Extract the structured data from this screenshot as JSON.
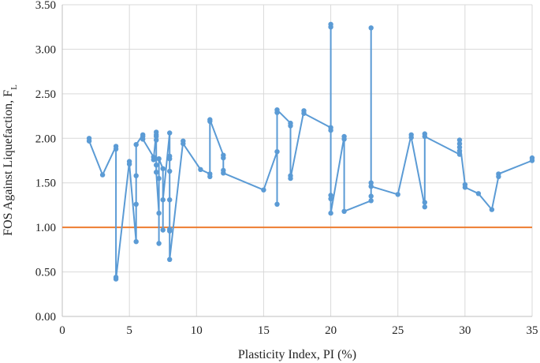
{
  "chart_data": {
    "type": "line",
    "xlabel": "Plasticity Index, PI (%)",
    "ylabel": "FOS Against Liquefaction, F",
    "ylabel_sub": "L",
    "xlim": [
      0,
      35
    ],
    "ylim": [
      0,
      3.5
    ],
    "xticks": [
      "0",
      "5",
      "10",
      "15",
      "20",
      "25",
      "30",
      "35"
    ],
    "yticks": [
      "0.00",
      "0.50",
      "1.00",
      "1.50",
      "2.00",
      "2.50",
      "3.00",
      "3.50"
    ],
    "grid": true,
    "series": [
      {
        "color": "#5b9bd5",
        "points": [
          [
            2,
            2.0
          ],
          [
            2,
            1.97
          ],
          [
            3,
            1.59
          ],
          [
            4,
            1.91
          ],
          [
            4,
            1.88
          ],
          [
            4,
            0.44
          ],
          [
            4,
            0.42
          ],
          [
            5,
            1.74
          ],
          [
            5,
            1.71
          ],
          [
            5.5,
            0.84
          ],
          [
            5.5,
            1.26
          ],
          [
            5.5,
            1.58
          ],
          [
            5.5,
            1.93
          ],
          [
            6,
            2.04
          ],
          [
            6,
            2.02
          ],
          [
            6,
            1.99
          ],
          [
            6.8,
            1.79
          ],
          [
            6.8,
            1.76
          ],
          [
            7,
            2.07
          ],
          [
            7,
            2.04
          ],
          [
            7,
            2.02
          ],
          [
            7,
            1.98
          ],
          [
            7,
            1.7
          ],
          [
            7,
            1.62
          ],
          [
            7.2,
            1.16
          ],
          [
            7.2,
            0.82
          ],
          [
            7.2,
            1.55
          ],
          [
            7.2,
            1.77
          ],
          [
            7.5,
            1.66
          ],
          [
            7.5,
            0.97
          ],
          [
            7.5,
            1.31
          ],
          [
            8,
            2.06
          ],
          [
            8,
            1.8
          ],
          [
            8,
            1.77
          ],
          [
            8,
            1.63
          ],
          [
            8,
            1.31
          ],
          [
            8,
            0.98
          ],
          [
            8,
            0.96
          ],
          [
            8,
            0.64
          ],
          [
            9,
            1.97
          ],
          [
            9,
            1.94
          ],
          [
            10.3,
            1.65
          ],
          [
            11,
            1.6
          ],
          [
            11,
            1.57
          ],
          [
            11,
            2.19
          ],
          [
            11,
            2.21
          ],
          [
            12,
            1.81
          ],
          [
            12,
            1.78
          ],
          [
            12,
            1.64
          ],
          [
            12,
            1.61
          ],
          [
            15,
            1.42
          ],
          [
            16,
            1.85
          ],
          [
            16,
            1.26
          ],
          [
            16,
            2.29
          ],
          [
            16,
            2.32
          ],
          [
            17,
            2.17
          ],
          [
            17,
            2.14
          ],
          [
            17,
            1.58
          ],
          [
            17,
            1.55
          ],
          [
            18,
            2.31
          ],
          [
            18,
            2.28
          ],
          [
            20,
            2.12
          ],
          [
            20,
            2.09
          ],
          [
            20,
            3.28
          ],
          [
            20,
            3.25
          ],
          [
            20,
            1.36
          ],
          [
            20,
            1.32
          ],
          [
            20,
            1.16
          ],
          [
            21,
            2.02
          ],
          [
            21,
            1.99
          ],
          [
            21,
            1.18
          ],
          [
            23,
            1.3
          ],
          [
            23,
            1.35
          ],
          [
            23,
            3.24
          ],
          [
            23,
            1.5
          ],
          [
            23,
            1.46
          ],
          [
            25,
            1.37
          ],
          [
            26,
            2.04
          ],
          [
            26,
            2.01
          ],
          [
            27,
            1.23
          ],
          [
            27,
            1.28
          ],
          [
            27,
            2.05
          ],
          [
            27,
            2.02
          ],
          [
            29.6,
            1.82
          ],
          [
            29.6,
            1.86
          ],
          [
            29.6,
            1.9
          ],
          [
            29.6,
            1.94
          ],
          [
            29.6,
            1.98
          ],
          [
            30,
            1.48
          ],
          [
            30,
            1.45
          ],
          [
            31,
            1.38
          ],
          [
            32,
            1.2
          ],
          [
            32.5,
            1.57
          ],
          [
            32.5,
            1.6
          ],
          [
            35,
            1.75
          ],
          [
            35,
            1.78
          ]
        ]
      }
    ],
    "reference_line": {
      "y": 1.0,
      "color": "#ed7d31"
    }
  }
}
